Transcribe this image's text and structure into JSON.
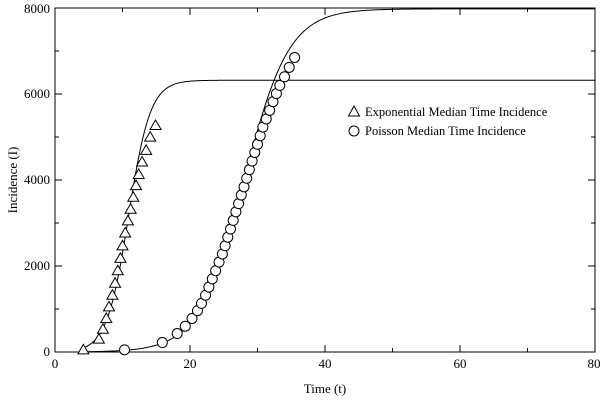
{
  "chart_data": {
    "type": "scatter",
    "xlabel": "Time (t)",
    "ylabel": "Incidence (I)",
    "xlim": [
      0,
      80
    ],
    "ylim": [
      0,
      8000
    ],
    "x_ticks": [
      "0",
      "20",
      "40",
      "60",
      "80"
    ],
    "y_ticks": [
      "0",
      "2000",
      "4000",
      "6000",
      "8000"
    ],
    "grid": false,
    "legend_position": "right",
    "series": [
      {
        "name": "Exponential Median Time Incidence",
        "marker": "triangle",
        "x": [
          4.2,
          6.5,
          7.1,
          7.6,
          8.0,
          8.5,
          8.9,
          9.3,
          9.7,
          10.0,
          10.4,
          10.8,
          11.2,
          11.6,
          12.0,
          12.4,
          12.9,
          13.5,
          14.1,
          14.9
        ],
        "y": [
          60,
          310,
          540,
          790,
          1060,
          1330,
          1610,
          1900,
          2190,
          2480,
          2780,
          3060,
          3330,
          3610,
          3880,
          4140,
          4430,
          4700,
          5010,
          5280
        ]
      },
      {
        "name": "Poisson Median Time Incidence",
        "marker": "circle",
        "x": [
          10.3,
          15.9,
          18.1,
          19.3,
          20.3,
          21.1,
          21.7,
          22.3,
          22.8,
          23.3,
          23.8,
          24.3,
          24.8,
          25.2,
          25.6,
          26.0,
          26.4,
          26.8,
          27.2,
          27.6,
          28.0,
          28.4,
          28.8,
          29.2,
          29.6,
          30.0,
          30.4,
          30.8,
          31.3,
          31.8,
          32.3,
          32.8,
          33.3,
          34.0,
          34.7,
          35.5
        ],
        "y": [
          50,
          220,
          430,
          600,
          780,
          960,
          1130,
          1320,
          1510,
          1700,
          1890,
          2090,
          2280,
          2470,
          2670,
          2860,
          3060,
          3260,
          3450,
          3650,
          3840,
          4040,
          4240,
          4440,
          4640,
          4830,
          5030,
          5230,
          5420,
          5620,
          5820,
          6010,
          6200,
          6400,
          6620,
          6850
        ]
      }
    ],
    "curves": [
      {
        "plateau": 6320,
        "midpoint": 10.9,
        "rate": 0.62
      },
      {
        "plateau": 7980,
        "midpoint": 28.0,
        "rate": 0.3
      }
    ]
  }
}
